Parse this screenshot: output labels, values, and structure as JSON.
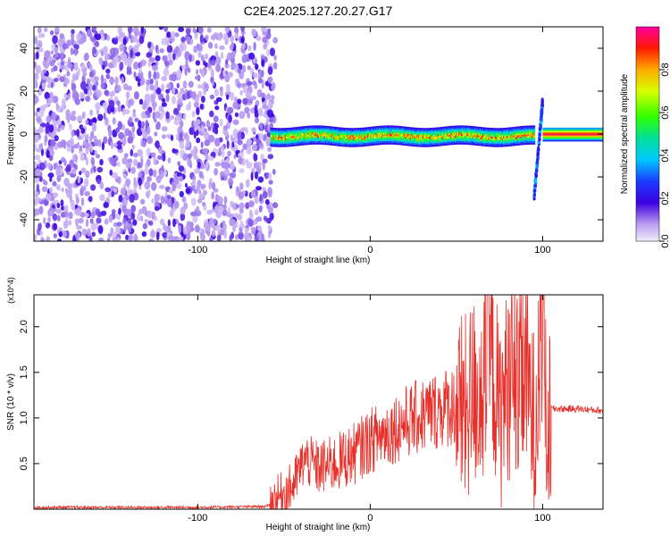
{
  "title": "C2E4.2025.127.20.27.G17",
  "chart_data": [
    {
      "type": "heatmap",
      "xlabel": "Height of straight line (km)",
      "ylabel": "Frequency (Hz)",
      "xlim": [
        -195,
        135
      ],
      "ylim": [
        -50,
        50
      ],
      "x_ticks": [
        -100,
        0,
        100
      ],
      "y_ticks": [
        -40,
        -20,
        0,
        20,
        40
      ],
      "colorbar": {
        "label": "Normalized spectral amplitude",
        "range": [
          0.0,
          1.0
        ],
        "ticks": [
          0.0,
          0.2,
          0.4,
          0.6,
          0.8
        ]
      },
      "regions": [
        {
          "x_range": [
            -195,
            -58
          ],
          "freq_range": [
            -50,
            50
          ],
          "amplitude": "low noise (0.0-0.15)"
        },
        {
          "x_range": [
            -58,
            95
          ],
          "freq_center": -1,
          "freq_halfwidth": 4,
          "amplitude_peak": 0.9
        },
        {
          "x_range": [
            95,
            100
          ],
          "freq_range": [
            -30,
            15
          ],
          "amplitude_peak": 0.4
        },
        {
          "x_range": [
            100,
            135
          ],
          "freq_center": 0,
          "freq_halfwidth": 3,
          "amplitude_peak": 1.0
        }
      ]
    },
    {
      "type": "line",
      "xlabel": "Height of straight line (km)",
      "ylabel": "SNR (10 * v/v)",
      "y_multiplier": "(x10^4)",
      "xlim": [
        -195,
        135
      ],
      "ylim": [
        0,
        2.35
      ],
      "x_ticks": [
        -100,
        0,
        100
      ],
      "y_ticks": [
        0.5,
        1.0,
        1.5,
        2.0
      ],
      "series": [
        {
          "color": "#e8302a",
          "x": [
            -195,
            -150,
            -100,
            -60,
            -45,
            -38,
            -30,
            -20,
            -10,
            0,
            10,
            20,
            30,
            40,
            50,
            55,
            60,
            65,
            70,
            75,
            80,
            85,
            90,
            95,
            100,
            103,
            105,
            110,
            120,
            135
          ],
          "y": [
            0.02,
            0.02,
            0.02,
            0.03,
            0.25,
            0.55,
            0.45,
            0.5,
            0.6,
            0.75,
            0.85,
            0.95,
            1.02,
            1.1,
            1.15,
            1.05,
            1.3,
            1.2,
            1.7,
            1.0,
            1.4,
            1.2,
            1.5,
            0.9,
            2.0,
            0.6,
            1.1,
            1.1,
            1.1,
            1.08
          ]
        }
      ]
    }
  ]
}
